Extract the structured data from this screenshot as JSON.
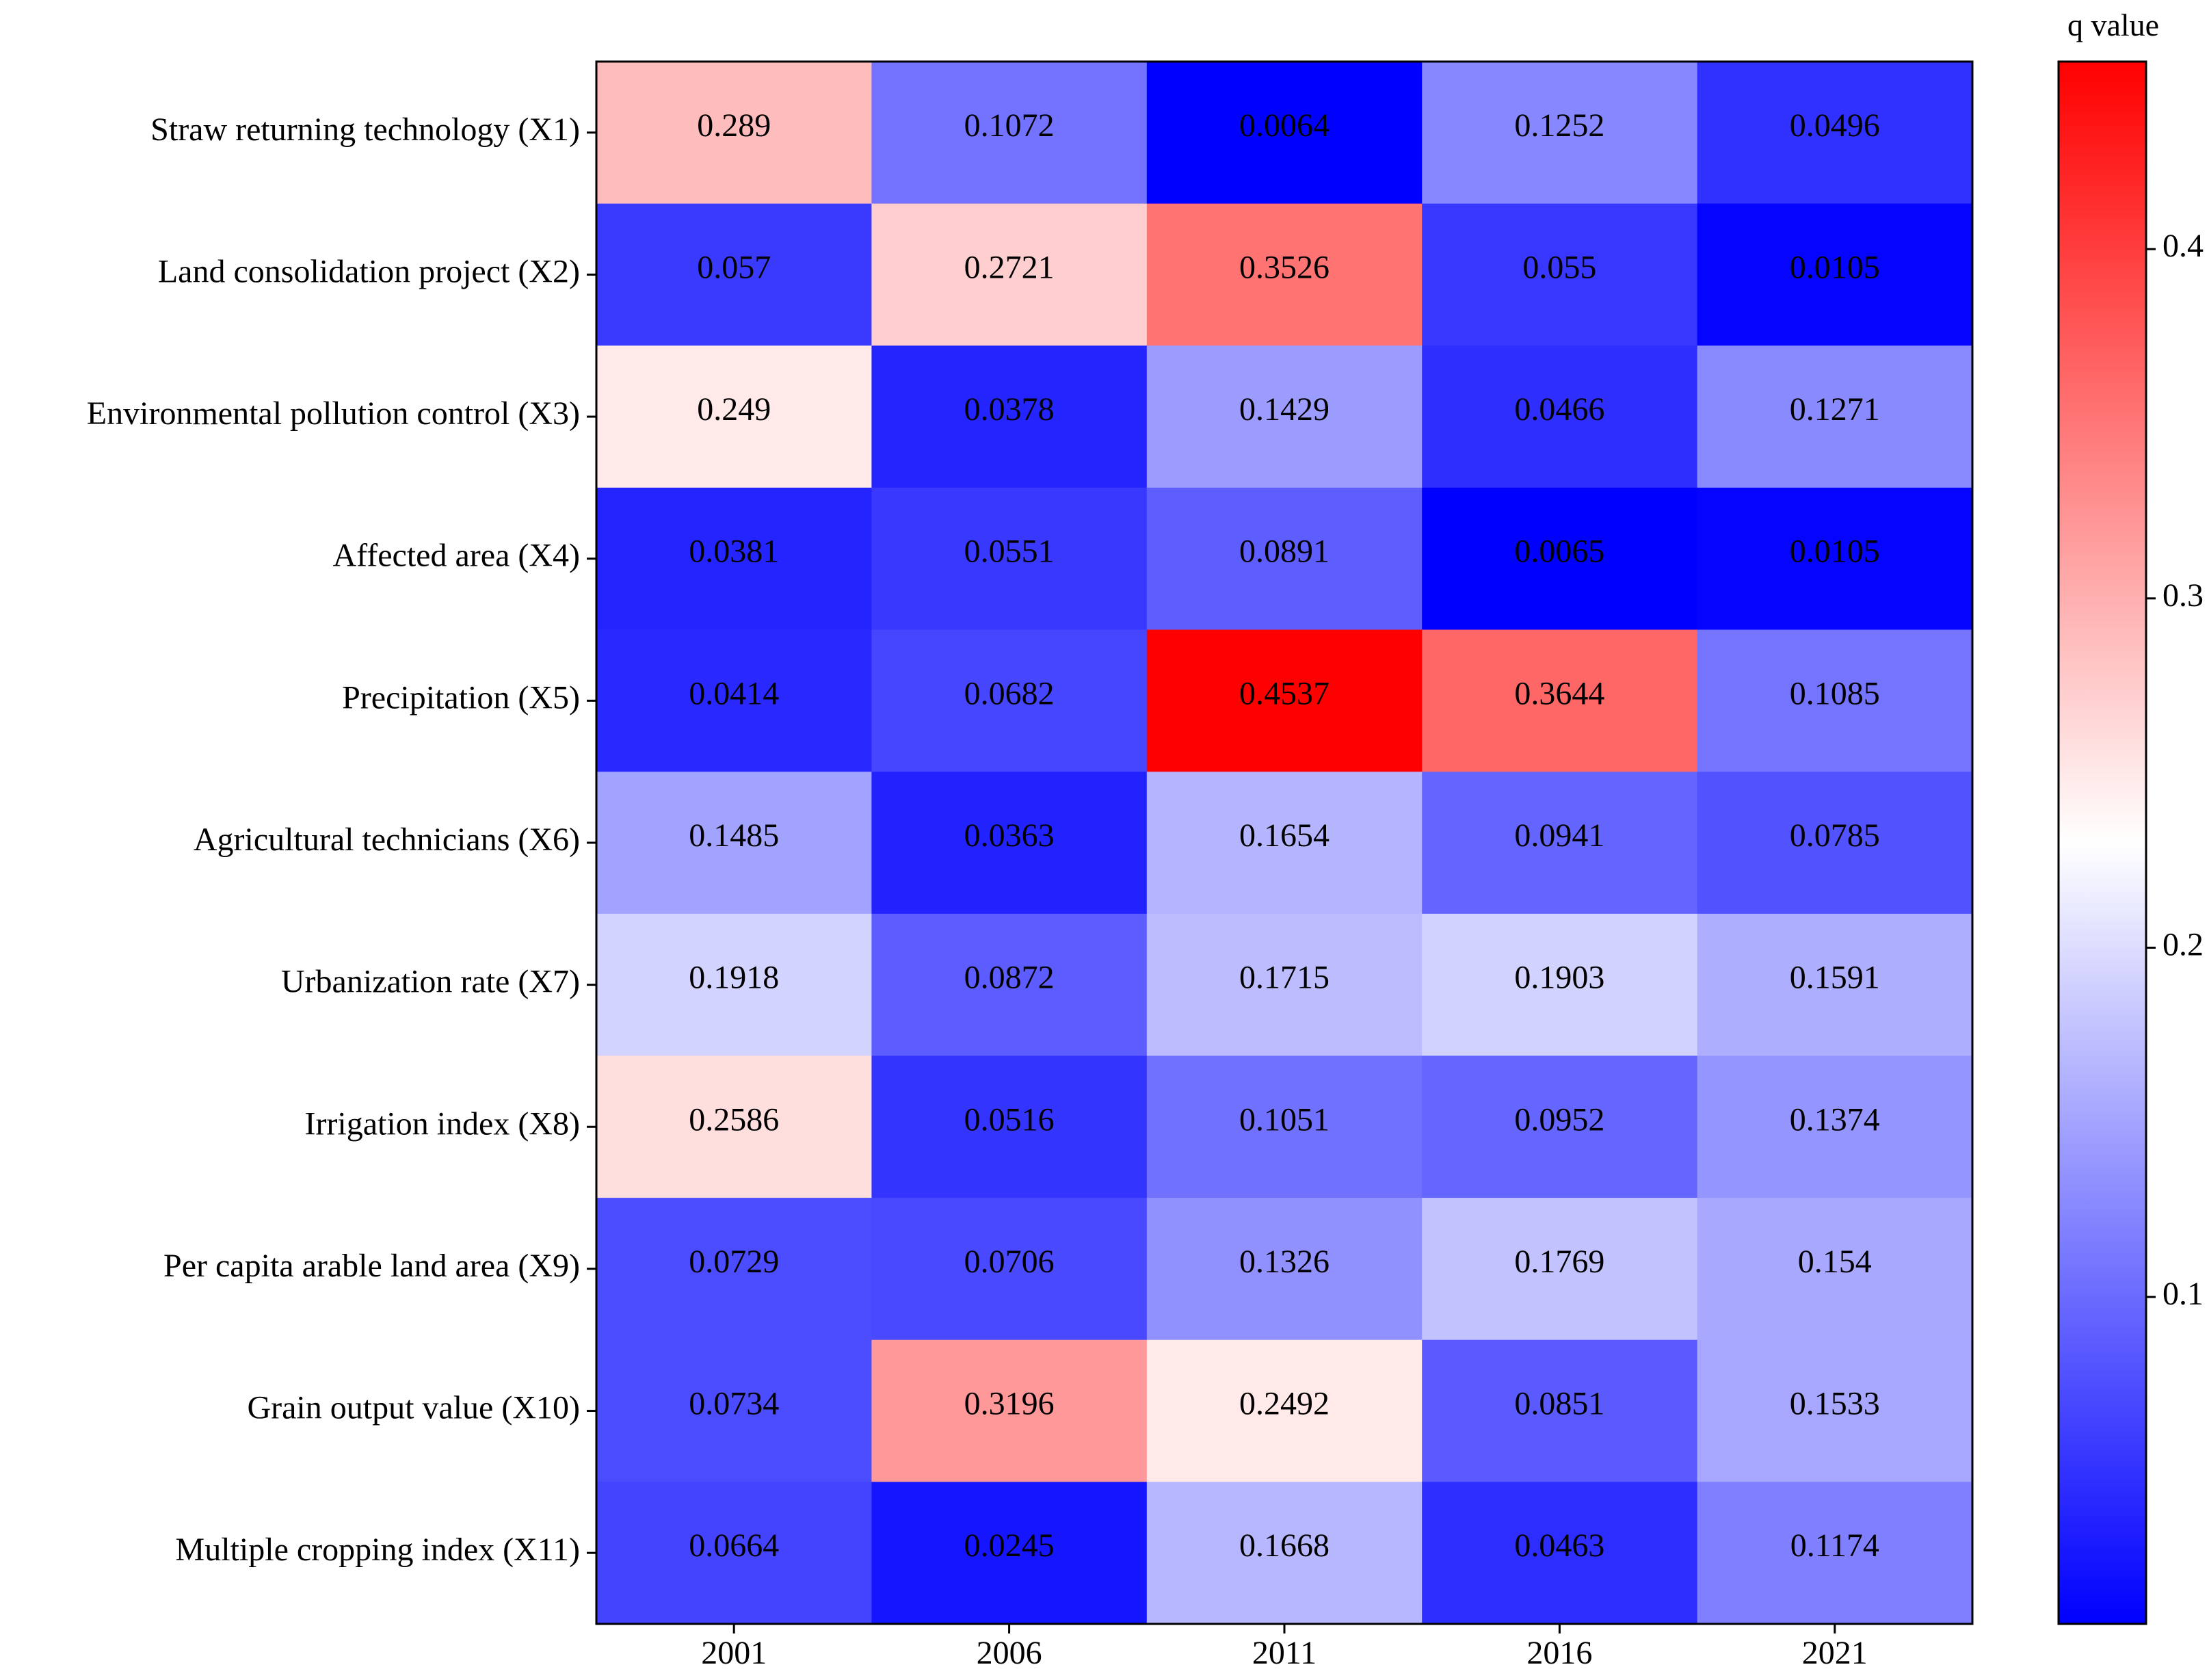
{
  "chart_data": {
    "type": "heatmap",
    "title": "",
    "xlabel": "",
    "ylabel": "",
    "x_categories": [
      "2001",
      "2006",
      "2011",
      "2016",
      "2021"
    ],
    "y_categories": [
      "Straw returning technology (X1)",
      "Land consolidation project (X2)",
      "Environmental pollution control (X3)",
      "Affected area (X4)",
      "Precipitation (X5)",
      "Agricultural technicians (X6)",
      "Urbanization rate (X7)",
      "Irrigation index (X8)",
      "Per capita arable land area (X9)",
      "Grain output value (X10)",
      "Multiple cropping index (X11)"
    ],
    "values": [
      [
        0.289,
        0.1072,
        0.0064,
        0.1252,
        0.0496
      ],
      [
        0.057,
        0.2721,
        0.3526,
        0.055,
        0.0105
      ],
      [
        0.249,
        0.0378,
        0.1429,
        0.0466,
        0.1271
      ],
      [
        0.0381,
        0.0551,
        0.0891,
        0.0065,
        0.0105
      ],
      [
        0.0414,
        0.0682,
        0.4537,
        0.3644,
        0.1085
      ],
      [
        0.1485,
        0.0363,
        0.1654,
        0.0941,
        0.0785
      ],
      [
        0.1918,
        0.0872,
        0.1715,
        0.1903,
        0.1591
      ],
      [
        0.2586,
        0.0516,
        0.1051,
        0.0952,
        0.1374
      ],
      [
        0.0729,
        0.0706,
        0.1326,
        0.1769,
        0.154
      ],
      [
        0.0734,
        0.3196,
        0.2492,
        0.0851,
        0.1533
      ],
      [
        0.0664,
        0.0245,
        0.1668,
        0.0463,
        0.1174
      ]
    ],
    "value_labels": [
      [
        "0.289",
        "0.1072",
        "0.0064",
        "0.1252",
        "0.0496"
      ],
      [
        "0.057",
        "0.2721",
        "0.3526",
        "0.055",
        "0.0105"
      ],
      [
        "0.249",
        "0.0378",
        "0.1429",
        "0.0466",
        "0.1271"
      ],
      [
        "0.0381",
        "0.0551",
        "0.0891",
        "0.0065",
        "0.0105"
      ],
      [
        "0.0414",
        "0.0682",
        "0.4537",
        "0.3644",
        "0.1085"
      ],
      [
        "0.1485",
        "0.0363",
        "0.1654",
        "0.0941",
        "0.0785"
      ],
      [
        "0.1918",
        "0.0872",
        "0.1715",
        "0.1903",
        "0.1591"
      ],
      [
        "0.2586",
        "0.0516",
        "0.1051",
        "0.0952",
        "0.1374"
      ],
      [
        "0.0729",
        "0.0706",
        "0.1326",
        "0.1769",
        "0.154"
      ],
      [
        "0.0734",
        "0.3196",
        "0.2492",
        "0.0851",
        "0.1533"
      ],
      [
        "0.0664",
        "0.0245",
        "0.1668",
        "0.0463",
        "0.1174"
      ]
    ],
    "colorbar": {
      "label": "q value",
      "vmin": 0.0064,
      "vmax": 0.4537,
      "ticks": [
        0.1,
        0.2,
        0.3,
        0.4
      ],
      "tick_labels": [
        "0.1",
        "0.2",
        "0.3",
        "0.4"
      ],
      "colormap": "bwr",
      "colors": {
        "low": "#0000ff",
        "mid": "#ffffff",
        "high": "#ff0000"
      }
    }
  }
}
